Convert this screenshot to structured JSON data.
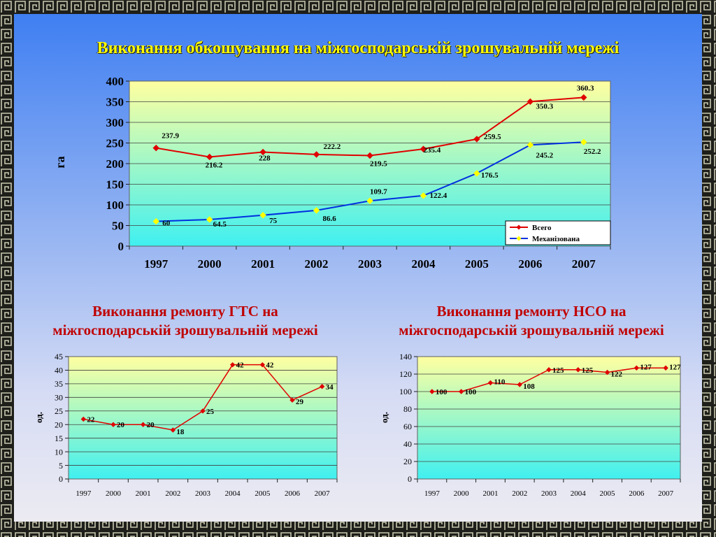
{
  "slide": {
    "title": "Виконання обкошування на міжгосподарській зрошувальній мережі"
  },
  "colors": {
    "plot_top": "#ffffa0",
    "plot_bottom": "#40f0f0",
    "series_total": "#e00000",
    "series_mech": "#0030e0",
    "marker_mech": "#ffff00",
    "subtitle": "#c00000",
    "title": "#ffff00"
  },
  "chart_data": [
    {
      "type": "line",
      "ylabel": "га",
      "xlabel": "",
      "ylim": [
        0,
        400
      ],
      "yticks": [
        "0",
        "50",
        "100",
        "150",
        "200",
        "250",
        "300",
        "350",
        "400"
      ],
      "categories": [
        "1997",
        "2000",
        "2001",
        "2002",
        "2003",
        "2004",
        "2005",
        "2006",
        "2007"
      ],
      "grid": true,
      "legend": "bottom-right",
      "series": [
        {
          "name": "Всего",
          "values": [
            237.9,
            216.2,
            228,
            222.2,
            219.5,
            235.4,
            259.5,
            350.3,
            360.3
          ],
          "labels": [
            "237.9",
            "216.2",
            "228",
            "222.2",
            "219.5",
            "235.4",
            "259.5",
            "350.3",
            "360.3"
          ]
        },
        {
          "name": "Механізована",
          "values": [
            60,
            64.5,
            75,
            86.6,
            109.7,
            122.4,
            176.5,
            245.2,
            252.2
          ],
          "labels": [
            "60",
            "64.5",
            "75",
            "86.6",
            "109.7",
            "122.4",
            "176.5",
            "245.2",
            "252.2"
          ]
        }
      ]
    },
    {
      "type": "line",
      "title": "Виконання ремонту ГТС на міжгосподарській зрошувальній мережі",
      "title_lines": [
        "Виконання ремонту ГТС на",
        "міжгосподарській зрошувальній мережі"
      ],
      "ylabel": "од.",
      "xlabel": "",
      "ylim": [
        0,
        45
      ],
      "yticks": [
        "0",
        "5",
        "10",
        "15",
        "20",
        "25",
        "30",
        "35",
        "40",
        "45"
      ],
      "categories": [
        "1997",
        "2000",
        "2001",
        "2002",
        "2003",
        "2004",
        "2005",
        "2006",
        "2007"
      ],
      "grid": true,
      "series": [
        {
          "values": [
            22,
            20,
            20,
            18,
            25,
            42,
            42,
            29,
            34
          ],
          "labels": [
            "22",
            "20",
            "20",
            "18",
            "25",
            "42",
            "42",
            "29",
            "34"
          ]
        }
      ]
    },
    {
      "type": "line",
      "title": "Виконання ремонту НСО на міжгосподарській зрошувальній мережі",
      "title_lines": [
        "Виконання ремонту НСО на",
        "міжгосподарській зрошувальній мережі"
      ],
      "ylabel": "од.",
      "xlabel": "",
      "ylim": [
        0,
        140
      ],
      "yticks": [
        "0",
        "20",
        "40",
        "60",
        "80",
        "100",
        "120",
        "140"
      ],
      "categories": [
        "1997",
        "2000",
        "2001",
        "2002",
        "2003",
        "2004",
        "2005",
        "2006",
        "2007"
      ],
      "grid": true,
      "series": [
        {
          "values": [
            100,
            100,
            110,
            108,
            125,
            125,
            122,
            127,
            127
          ],
          "labels": [
            "100",
            "100",
            "110",
            "108",
            "125",
            "125",
            "122",
            "127",
            "127"
          ]
        }
      ]
    }
  ]
}
